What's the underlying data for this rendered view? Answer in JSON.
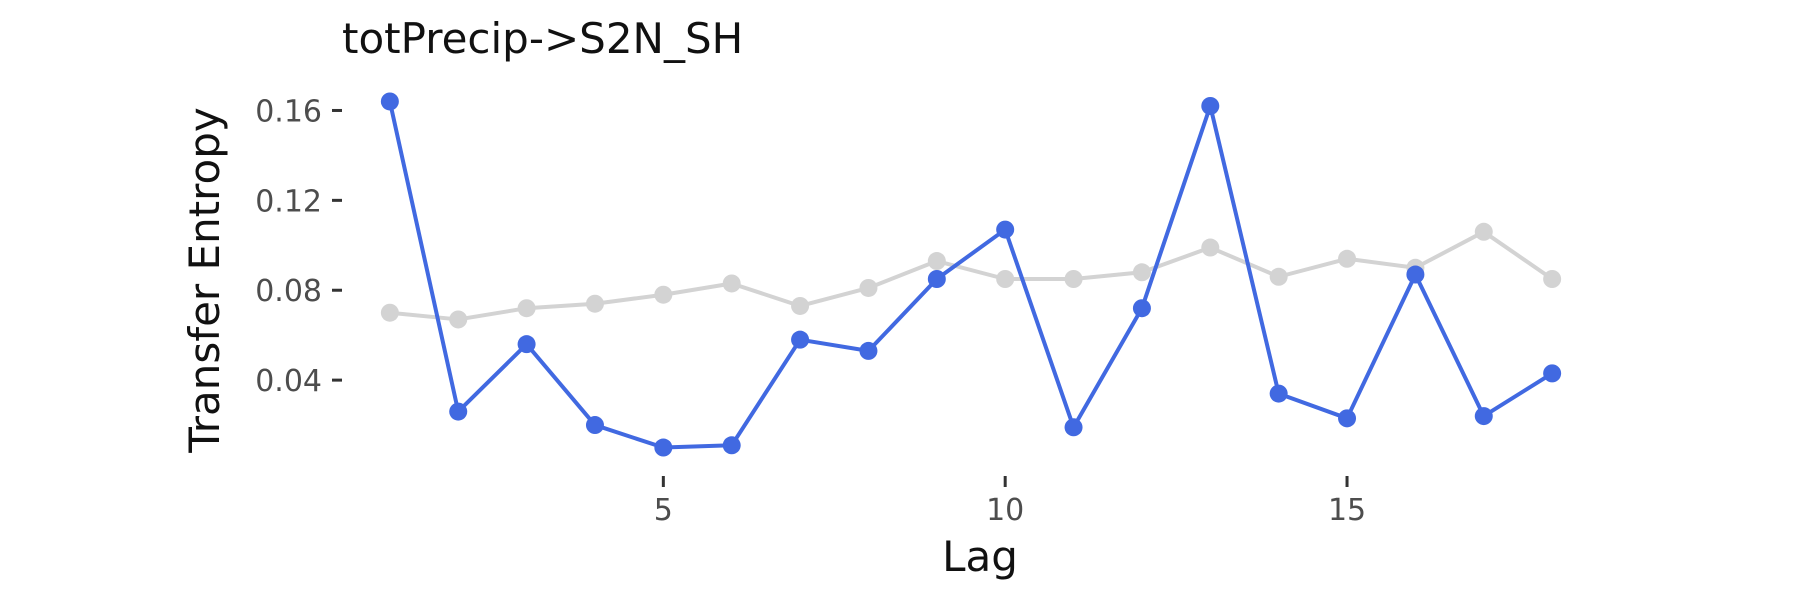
{
  "chart_data": {
    "type": "line",
    "title": "totPrecip->S2N_SH",
    "xlabel": "Lag",
    "ylabel": "Transfer Entropy",
    "xlim": [
      0.3,
      18.7
    ],
    "ylim": [
      0.0,
      0.17
    ],
    "x_ticks": [
      5,
      10,
      15
    ],
    "y_ticks": [
      0.04,
      0.08,
      0.12,
      0.16
    ],
    "y_tick_labels": [
      "0.04",
      "0.08",
      "0.12",
      "0.16"
    ],
    "grid": false,
    "legend": "none",
    "x": [
      1,
      2,
      3,
      4,
      5,
      6,
      7,
      8,
      9,
      10,
      11,
      12,
      13,
      14,
      15,
      16,
      17,
      18
    ],
    "series": [
      {
        "color": "#d3d3d3",
        "values": [
          0.07,
          0.067,
          0.072,
          0.074,
          0.078,
          0.083,
          0.073,
          0.081,
          0.093,
          0.085,
          0.085,
          0.088,
          0.099,
          0.086,
          0.094,
          0.09,
          0.106,
          0.085
        ]
      },
      {
        "color": "#4169e1",
        "values": [
          0.164,
          0.026,
          0.056,
          0.02,
          0.01,
          0.011,
          0.058,
          0.053,
          0.085,
          0.107,
          0.019,
          0.072,
          0.162,
          0.034,
          0.023,
          0.087,
          0.024,
          0.043
        ]
      }
    ]
  }
}
